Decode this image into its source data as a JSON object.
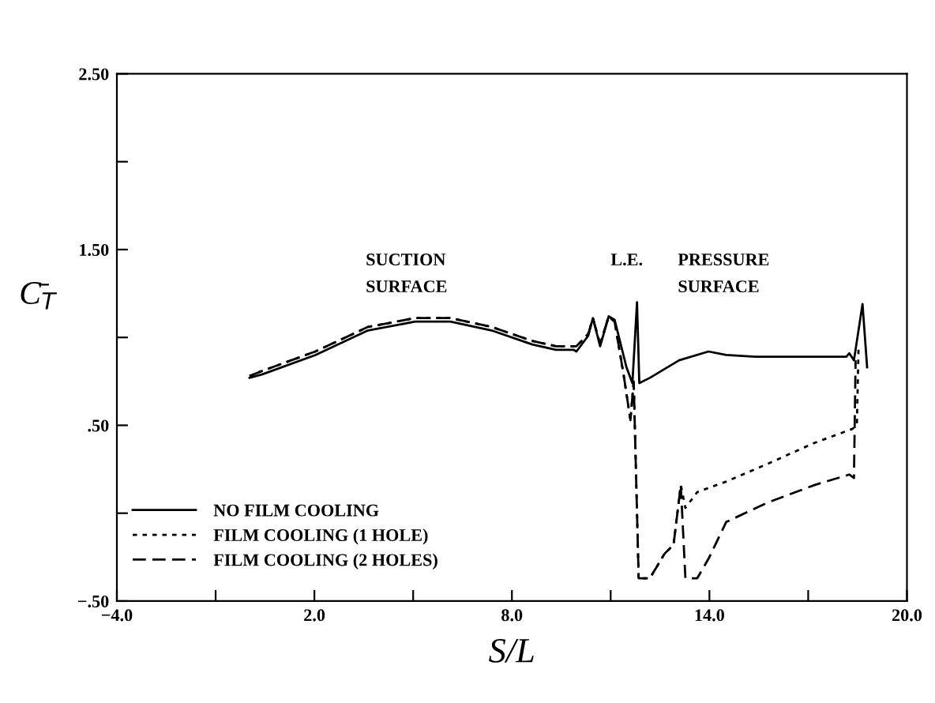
{
  "chart_data": {
    "type": "line",
    "xlabel": "S/L",
    "ylabel": "C̄$_{T}$",
    "annotations": [
      "SUCTION\nSURFACE",
      "L.E.",
      "PRESSURE\nSURFACE"
    ],
    "xlim": [
      -4,
      20
    ],
    "ylim": [
      -0.5,
      2.5
    ],
    "xticks": [
      {
        "value": -4,
        "label": "−4.0"
      },
      {
        "value": -1,
        "label": null
      },
      {
        "value": 2,
        "label": "2.0"
      },
      {
        "value": 5,
        "label": null
      },
      {
        "value": 8,
        "label": "8.0"
      },
      {
        "value": 11,
        "label": null
      },
      {
        "value": 14,
        "label": "14.0"
      },
      {
        "value": 17,
        "label": null
      },
      {
        "value": 20,
        "label": "20.0"
      }
    ],
    "yticks": [
      {
        "value": -0.5,
        "label": "−.50"
      },
      {
        "value": 0,
        "label": null
      },
      {
        "value": 0.5,
        "label": ".50"
      },
      {
        "value": 1.0,
        "label": null
      },
      {
        "value": 1.5,
        "label": "1.50"
      },
      {
        "value": 2.0,
        "label": null
      },
      {
        "value": 2.5,
        "label": "2.50"
      }
    ],
    "grid": false,
    "legend": "bottom left",
    "series": [
      {
        "name": "NO FILM COOLING",
        "color": "#000000",
        "line_style": "solid",
        "x": [
          0.03,
          0.42,
          2.03,
          3.63,
          5.06,
          6.13,
          7.38,
          8.62,
          9.34,
          9.87,
          9.96,
          10.32,
          10.46,
          10.68,
          10.94,
          11.12,
          11.48,
          11.66,
          11.8,
          11.87,
          12.19,
          13.08,
          13.97,
          14.51,
          15.4,
          18.16,
          18.25,
          18.39,
          18.65,
          18.79
        ],
        "values": [
          0.77,
          0.79,
          0.9,
          1.04,
          1.09,
          1.09,
          1.04,
          0.96,
          0.93,
          0.93,
          0.92,
          1.01,
          1.11,
          0.95,
          1.12,
          1.1,
          0.83,
          0.74,
          1.2,
          0.74,
          0.77,
          0.87,
          0.92,
          0.9,
          0.89,
          0.89,
          0.91,
          0.87,
          1.19,
          0.83
        ]
      },
      {
        "name": "FILM COOLING (1 HOLE)",
        "color": "#000000",
        "line_style": "dotted",
        "x": [
          0.03,
          0.42,
          2.03,
          3.63,
          5.06,
          6.13,
          7.38,
          8.62,
          9.34,
          9.96,
          10.32,
          10.46,
          10.68,
          10.94,
          11.12,
          11.4,
          11.6,
          11.7,
          11.85,
          12.19,
          12.64,
          12.91,
          13.13,
          13.27,
          13.63,
          14.51,
          15.76,
          17.19,
          18.35,
          18.48,
          18.53
        ],
        "values": [
          0.78,
          0.81,
          0.92,
          1.06,
          1.11,
          1.11,
          1.06,
          0.98,
          0.95,
          0.95,
          1.02,
          1.11,
          0.96,
          1.12,
          1.09,
          0.78,
          0.53,
          0.75,
          -0.37,
          -0.37,
          -0.23,
          -0.18,
          0.16,
          0.03,
          0.12,
          0.18,
          0.28,
          0.4,
          0.48,
          0.51,
          0.95
        ]
      },
      {
        "name": "FILM COOLING (2 HOLES)",
        "color": "#000000",
        "line_style": "dashed",
        "x": [
          0.03,
          0.42,
          2.03,
          3.63,
          5.06,
          6.13,
          7.38,
          8.62,
          9.34,
          9.96,
          10.32,
          10.46,
          10.68,
          10.94,
          11.12,
          11.4,
          11.6,
          11.7,
          11.85,
          12.19,
          12.64,
          12.91,
          13.13,
          13.27,
          13.63,
          13.97,
          14.51,
          15.76,
          17.19,
          18.25,
          18.39,
          18.44
        ],
        "values": [
          0.78,
          0.81,
          0.92,
          1.06,
          1.11,
          1.11,
          1.06,
          0.98,
          0.95,
          0.95,
          1.02,
          1.11,
          0.96,
          1.12,
          1.09,
          0.78,
          0.53,
          0.75,
          -0.37,
          -0.37,
          -0.23,
          -0.18,
          0.16,
          -0.37,
          -0.37,
          -0.26,
          -0.05,
          0.06,
          0.16,
          0.22,
          0.2,
          0.87
        ]
      }
    ]
  }
}
